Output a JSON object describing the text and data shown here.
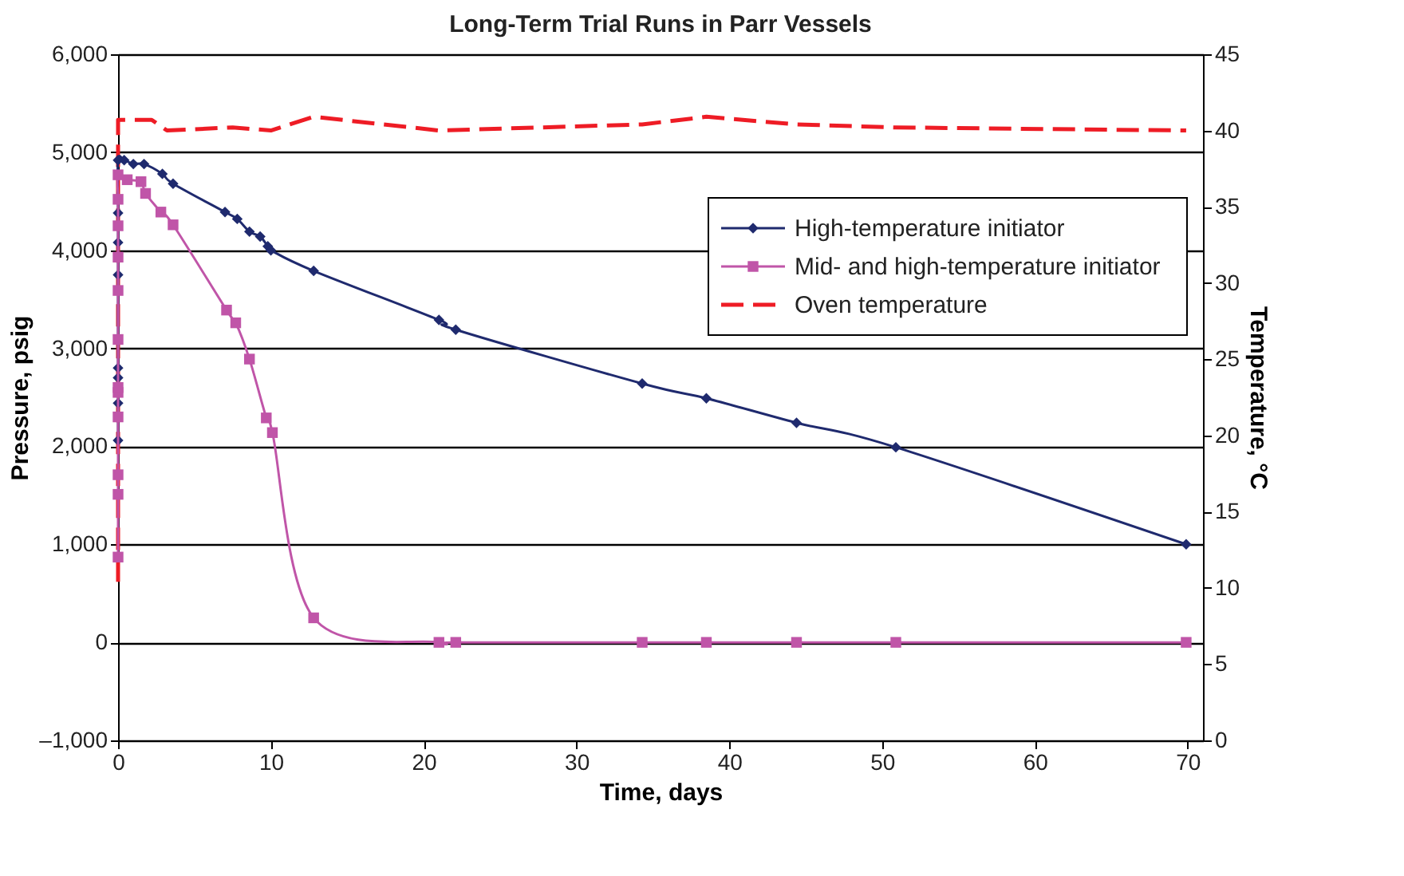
{
  "chart_data": {
    "type": "line",
    "title": "Long-Term Trial Runs in Parr Vessels",
    "xlabel": "Time, days",
    "ylabel": "Pressure, psig",
    "y2label": "Temperature, °C",
    "xlim": [
      0,
      71
    ],
    "xticks": [
      0,
      10,
      20,
      30,
      40,
      50,
      60,
      70
    ],
    "ylim": [
      -1000,
      6000
    ],
    "yticks": [
      {
        "value": -1000,
        "label": "–1,000"
      },
      0,
      {
        "value": 1000,
        "label": "1,000"
      },
      {
        "value": 2000,
        "label": "2,000"
      },
      {
        "value": 3000,
        "label": "3,000"
      },
      {
        "value": 4000,
        "label": "4,000"
      },
      {
        "value": 5000,
        "label": "5,000"
      },
      {
        "value": 6000,
        "label": "6,000"
      }
    ],
    "y2lim": [
      0,
      45
    ],
    "y2ticks": [
      0,
      5,
      10,
      15,
      20,
      25,
      30,
      35,
      40,
      45
    ],
    "grid": "y",
    "legend": "right",
    "series": [
      {
        "name": "High-temperature initiator",
        "color": "#1f2a6e",
        "marker": "diamond",
        "line_style": "solid",
        "x": [
          0,
          0,
          0,
          0,
          0,
          0,
          0,
          0,
          0.4,
          1.0,
          1.7,
          2.9,
          3.6,
          7.0,
          7.8,
          8.6,
          9.3,
          9.8,
          10.0,
          12.8,
          21.0,
          22.1,
          34.3,
          38.5,
          44.4,
          50.9,
          69.9
        ],
        "values": [
          2060,
          2440,
          2700,
          2800,
          3750,
          4080,
          4380,
          4920,
          4920,
          4880,
          4880,
          4780,
          4680,
          4390,
          4320,
          4190,
          4140,
          4040,
          4000,
          3790,
          3290,
          3190,
          2640,
          2490,
          2240,
          1990,
          1000
        ]
      },
      {
        "name": "Mid- and high-temperature initiator",
        "color": "#c055a8",
        "marker": "square",
        "line_style": "solid",
        "x": [
          0,
          0,
          0,
          0,
          0,
          0,
          0,
          0,
          0,
          0,
          0,
          0,
          0.6,
          1.5,
          1.8,
          2.8,
          3.6,
          7.1,
          7.7,
          8.6,
          9.7,
          10.1,
          12.8,
          21.0,
          22.1,
          34.3,
          38.5,
          44.4,
          50.9,
          69.9
        ],
        "values": [
          870,
          1510,
          1710,
          2300,
          2550,
          2600,
          3090,
          3590,
          3930,
          4250,
          4520,
          4770,
          4720,
          4700,
          4580,
          4390,
          4260,
          3390,
          3260,
          2890,
          2290,
          2140,
          250,
          0,
          0,
          0,
          0,
          0,
          0,
          0
        ]
      },
      {
        "name": "Oven temperature",
        "color": "#ee1c25",
        "marker": "none",
        "line_style": "dashed",
        "axis": "y2",
        "x": [
          0,
          0,
          2.2,
          3.2,
          7.5,
          10.0,
          12.8,
          21.0,
          34.3,
          38.5,
          44.4,
          50.9,
          69.9
        ],
        "values": [
          10.4,
          40.7,
          40.7,
          40.0,
          40.2,
          40.0,
          40.9,
          40.0,
          40.4,
          40.9,
          40.4,
          40.2,
          40.0
        ]
      }
    ]
  }
}
